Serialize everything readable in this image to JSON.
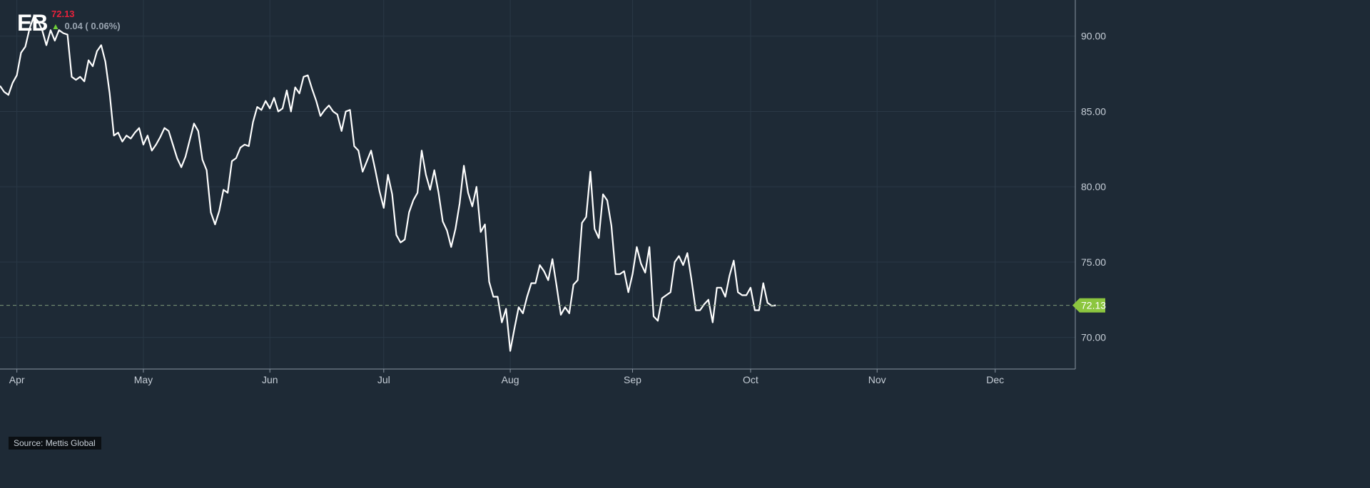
{
  "header": {
    "ticker": "EB",
    "last_price": "72.13",
    "change": "0.04 ( 0.06%)",
    "change_icon": "up-arrow-icon"
  },
  "source": "Source: Mettis Global",
  "colors": {
    "background": "#1e2a36",
    "line": "#ffffff",
    "grid": "#2a3846",
    "price_marker": "#8cc63f",
    "negative": "#e8213b",
    "positive": "#6fcf3a"
  },
  "chart_data": {
    "type": "line",
    "title": "",
    "xlabel": "",
    "ylabel": "",
    "ylim": [
      67.9,
      92.4
    ],
    "xlim": [
      0,
      255
    ],
    "y_ticks": [
      70,
      75,
      80,
      85,
      90
    ],
    "y_tick_labels": [
      "70.00",
      "75.00",
      "80.00",
      "85.00",
      "90.00"
    ],
    "x_ticks": [
      {
        "label": "Apr",
        "x": 4
      },
      {
        "label": "May",
        "x": 34
      },
      {
        "label": "Jun",
        "x": 64
      },
      {
        "label": "Jul",
        "x": 91
      },
      {
        "label": "Aug",
        "x": 121
      },
      {
        "label": "Sep",
        "x": 150
      },
      {
        "label": "Oct",
        "x": 178
      },
      {
        "label": "Nov",
        "x": 208
      },
      {
        "label": "Dec",
        "x": 236
      }
    ],
    "grid": true,
    "last_value": 72.13,
    "last_value_label": "72.13",
    "series": [
      {
        "values": [
          [
            0,
            86.7
          ],
          [
            1,
            86.3
          ],
          [
            2,
            86.1
          ],
          [
            3,
            86.9
          ],
          [
            4,
            87.4
          ],
          [
            5,
            88.9
          ],
          [
            6,
            89.3
          ],
          [
            7,
            90.5
          ],
          [
            8,
            91.3
          ],
          [
            9,
            91.0
          ],
          [
            10,
            90.4
          ],
          [
            11,
            89.4
          ],
          [
            12,
            90.4
          ],
          [
            13,
            89.7
          ],
          [
            14,
            90.4
          ],
          [
            15,
            90.2
          ],
          [
            16,
            90.1
          ],
          [
            17,
            87.3
          ],
          [
            18,
            87.1
          ],
          [
            19,
            87.3
          ],
          [
            20,
            87.0
          ],
          [
            21,
            88.4
          ],
          [
            22,
            88.0
          ],
          [
            23,
            89.0
          ],
          [
            24,
            89.4
          ],
          [
            25,
            88.3
          ],
          [
            26,
            86.2
          ],
          [
            27,
            83.4
          ],
          [
            28,
            83.6
          ],
          [
            29,
            83.0
          ],
          [
            30,
            83.4
          ],
          [
            31,
            83.2
          ],
          [
            32,
            83.6
          ],
          [
            33,
            83.9
          ],
          [
            34,
            82.8
          ],
          [
            35,
            83.4
          ],
          [
            36,
            82.4
          ],
          [
            37,
            82.8
          ],
          [
            38,
            83.3
          ],
          [
            39,
            83.9
          ],
          [
            40,
            83.7
          ],
          [
            41,
            82.8
          ],
          [
            42,
            81.9
          ],
          [
            43,
            81.3
          ],
          [
            44,
            82.0
          ],
          [
            45,
            83.1
          ],
          [
            46,
            84.2
          ],
          [
            47,
            83.7
          ],
          [
            48,
            81.8
          ],
          [
            49,
            81.1
          ],
          [
            50,
            78.3
          ],
          [
            51,
            77.5
          ],
          [
            52,
            78.4
          ],
          [
            53,
            79.8
          ],
          [
            54,
            79.6
          ],
          [
            55,
            81.7
          ],
          [
            56,
            81.9
          ],
          [
            57,
            82.6
          ],
          [
            58,
            82.8
          ],
          [
            59,
            82.7
          ],
          [
            60,
            84.3
          ],
          [
            61,
            85.3
          ],
          [
            62,
            85.1
          ],
          [
            63,
            85.7
          ],
          [
            64,
            85.2
          ],
          [
            65,
            85.9
          ],
          [
            66,
            85.0
          ],
          [
            67,
            85.2
          ],
          [
            68,
            86.4
          ],
          [
            69,
            85.0
          ],
          [
            70,
            86.6
          ],
          [
            71,
            86.2
          ],
          [
            72,
            87.3
          ],
          [
            73,
            87.4
          ],
          [
            74,
            86.5
          ],
          [
            75,
            85.7
          ],
          [
            76,
            84.7
          ],
          [
            77,
            85.1
          ],
          [
            78,
            85.4
          ],
          [
            79,
            85.0
          ],
          [
            80,
            84.8
          ],
          [
            81,
            83.7
          ],
          [
            82,
            85.0
          ],
          [
            83,
            85.1
          ],
          [
            84,
            82.7
          ],
          [
            85,
            82.4
          ],
          [
            86,
            81.0
          ],
          [
            87,
            81.7
          ],
          [
            88,
            82.4
          ],
          [
            89,
            81.1
          ],
          [
            90,
            79.7
          ],
          [
            91,
            78.6
          ],
          [
            92,
            80.8
          ],
          [
            93,
            79.5
          ],
          [
            94,
            76.8
          ],
          [
            95,
            76.3
          ],
          [
            96,
            76.5
          ],
          [
            97,
            78.3
          ],
          [
            98,
            79.1
          ],
          [
            99,
            79.6
          ],
          [
            100,
            82.4
          ],
          [
            101,
            80.8
          ],
          [
            102,
            79.8
          ],
          [
            103,
            81.1
          ],
          [
            104,
            79.6
          ],
          [
            105,
            77.7
          ],
          [
            106,
            77.1
          ],
          [
            107,
            76.0
          ],
          [
            108,
            77.2
          ],
          [
            109,
            78.9
          ],
          [
            110,
            81.4
          ],
          [
            111,
            79.6
          ],
          [
            112,
            78.7
          ],
          [
            113,
            80.0
          ],
          [
            114,
            77.0
          ],
          [
            115,
            77.5
          ],
          [
            116,
            73.7
          ],
          [
            117,
            72.7
          ],
          [
            118,
            72.7
          ],
          [
            119,
            71.0
          ],
          [
            120,
            71.9
          ],
          [
            121,
            69.1
          ],
          [
            122,
            70.6
          ],
          [
            123,
            72.0
          ],
          [
            124,
            71.6
          ],
          [
            125,
            72.7
          ],
          [
            126,
            73.6
          ],
          [
            127,
            73.6
          ],
          [
            128,
            74.8
          ],
          [
            129,
            74.4
          ],
          [
            130,
            73.8
          ],
          [
            131,
            75.2
          ],
          [
            132,
            73.4
          ],
          [
            133,
            71.5
          ],
          [
            134,
            72.0
          ],
          [
            135,
            71.6
          ],
          [
            136,
            73.5
          ],
          [
            137,
            73.8
          ],
          [
            138,
            77.6
          ],
          [
            139,
            78.0
          ],
          [
            140,
            81.0
          ],
          [
            141,
            77.2
          ],
          [
            142,
            76.6
          ],
          [
            143,
            79.5
          ],
          [
            144,
            79.1
          ],
          [
            145,
            77.4
          ],
          [
            146,
            74.2
          ],
          [
            147,
            74.2
          ],
          [
            148,
            74.4
          ],
          [
            149,
            73.0
          ],
          [
            150,
            74.2
          ],
          [
            151,
            76.0
          ],
          [
            152,
            74.9
          ],
          [
            153,
            74.3
          ],
          [
            154,
            76.0
          ],
          [
            155,
            71.4
          ],
          [
            156,
            71.1
          ],
          [
            157,
            72.6
          ],
          [
            158,
            72.8
          ],
          [
            159,
            73.0
          ],
          [
            160,
            75.0
          ],
          [
            161,
            75.4
          ],
          [
            162,
            74.8
          ],
          [
            163,
            75.6
          ],
          [
            164,
            73.8
          ],
          [
            165,
            71.8
          ],
          [
            166,
            71.8
          ],
          [
            167,
            72.2
          ],
          [
            168,
            72.5
          ],
          [
            169,
            71.0
          ],
          [
            170,
            73.3
          ],
          [
            171,
            73.3
          ],
          [
            172,
            72.7
          ],
          [
            173,
            74.1
          ],
          [
            174,
            75.1
          ],
          [
            175,
            73.0
          ],
          [
            176,
            72.8
          ],
          [
            177,
            72.8
          ],
          [
            178,
            73.3
          ],
          [
            179,
            71.8
          ],
          [
            180,
            71.8
          ],
          [
            181,
            73.6
          ],
          [
            182,
            72.3
          ],
          [
            183,
            72.1
          ],
          [
            184,
            72.13
          ]
        ]
      }
    ]
  }
}
